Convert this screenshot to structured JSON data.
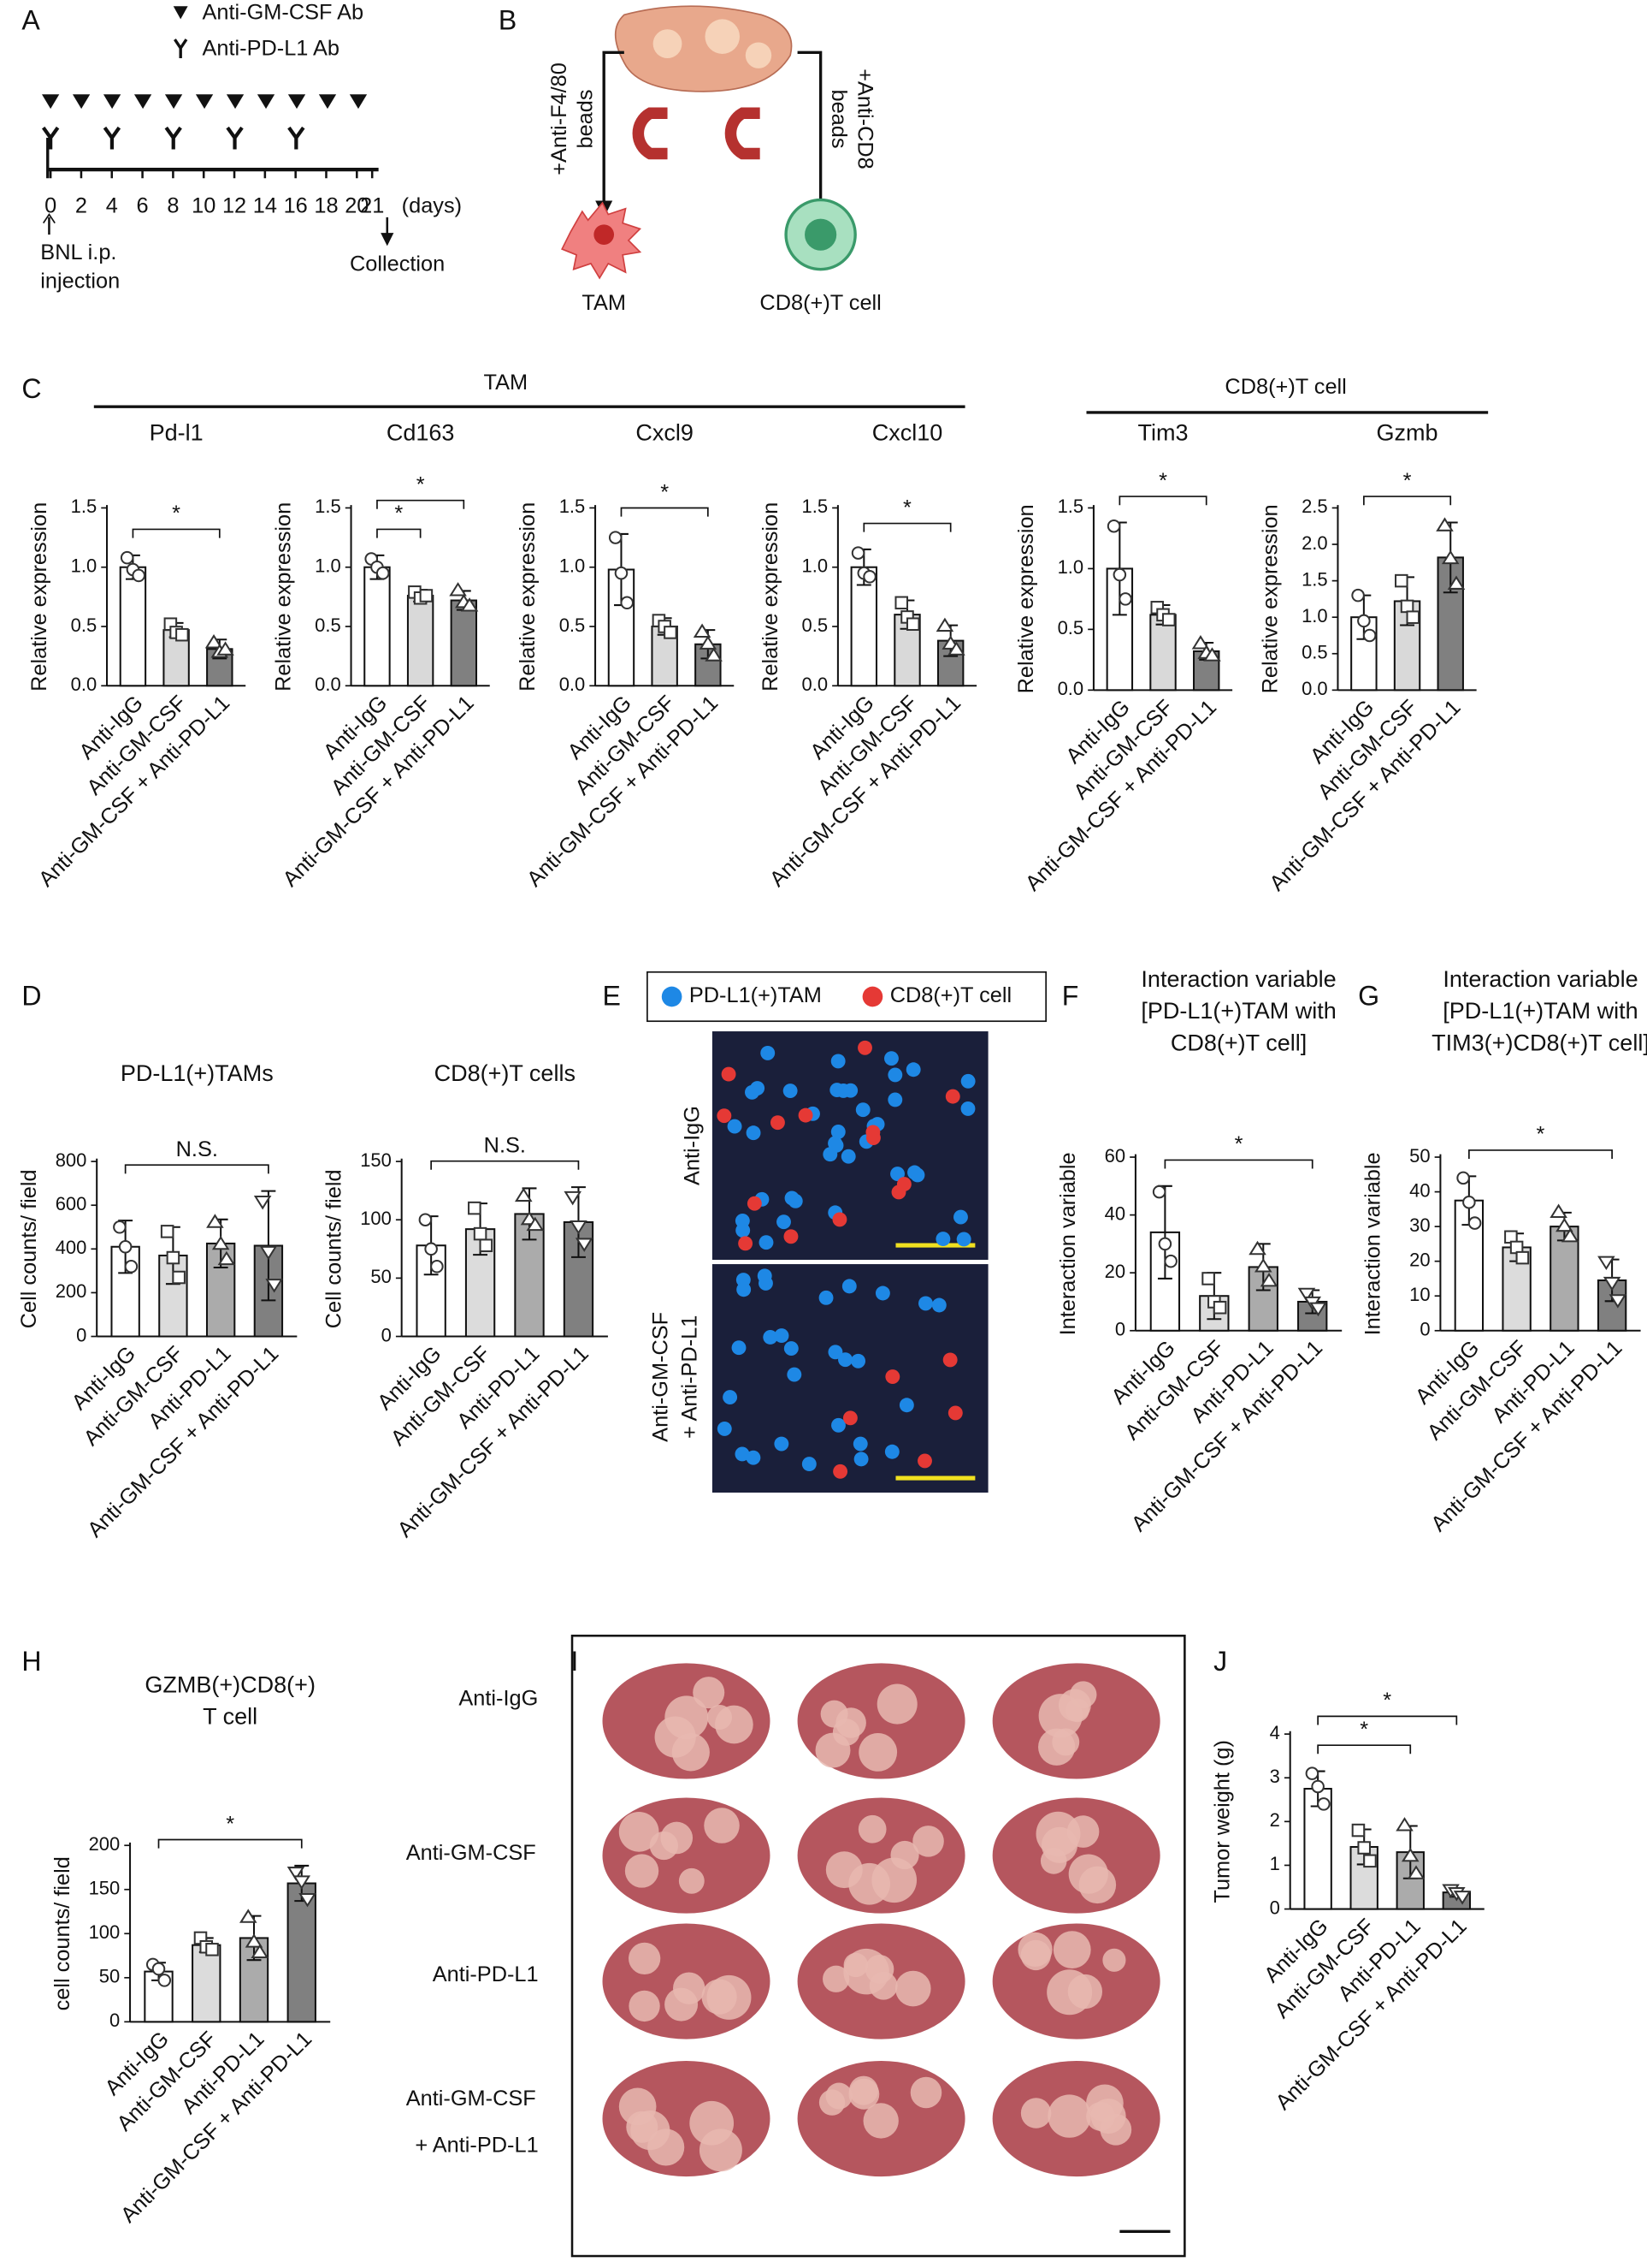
{
  "figure": {
    "panel_labels": [
      "A",
      "B",
      "C",
      "D",
      "E",
      "F",
      "G",
      "H",
      "I",
      "J"
    ],
    "a": {
      "legend": [
        "Anti-GM-CSF Ab",
        "Anti-PD-L1 Ab"
      ],
      "ticks": [
        0,
        2,
        4,
        6,
        8,
        10,
        12,
        14,
        16,
        18,
        20,
        21
      ],
      "unit": "(days)",
      "start": [
        "BNL i.p.",
        "injection"
      ],
      "end": "Collection"
    },
    "b": {
      "left": [
        "+Anti-F4/80",
        "beads"
      ],
      "right": [
        "+Anti-CD8",
        "beads"
      ],
      "cells": [
        "TAM",
        "CD8(+)T cell"
      ]
    },
    "c": {
      "groups": [
        "TAM",
        "CD8(+)T cell"
      ]
    },
    "e": {
      "legend": [
        "PD-L1(+)TAM",
        "CD8(+)T cell"
      ],
      "rows": [
        [
          "Anti-IgG"
        ],
        [
          "Anti-GM-CSF",
          "+ Anti-PD-L1"
        ]
      ]
    },
    "i": {
      "rows": [
        [
          "Anti-IgG"
        ],
        [
          "Anti-GM-CSF"
        ],
        [
          "Anti-PD-L1"
        ],
        [
          "Anti-GM-CSF",
          "+ Anti-PD-L1"
        ]
      ]
    }
  },
  "chart_data": [
    {
      "type": "bar",
      "title": "Pd-l1",
      "ylabel": "Relative expression",
      "categories": [
        "Anti-IgG",
        "Anti-GM-CSF",
        "Anti-GM-CSF + Anti-PD-L1"
      ],
      "values": [
        1.0,
        0.47,
        0.31
      ],
      "errors": [
        0.1,
        0.06,
        0.08
      ],
      "points": [
        [
          1.08,
          0.98,
          0.93
        ],
        [
          0.52,
          0.45,
          0.43
        ],
        [
          0.36,
          0.28,
          0.3
        ]
      ],
      "colors": [
        "#ffffff",
        "#d9d9d9",
        "#808080"
      ],
      "ylim": [
        0,
        1.5
      ],
      "yticks": [
        {
          "value": 0,
          "label": "0.0"
        },
        0.5,
        {
          "value": 1,
          "label": "1.0"
        },
        1.5
      ],
      "brackets": [
        {
          "label": "*",
          "from": 0,
          "to": 2
        }
      ]
    },
    {
      "type": "bar",
      "title": "Cd163",
      "ylabel": "Relative expression",
      "categories": [
        "Anti-IgG",
        "Anti-GM-CSF",
        "Anti-GM-CSF + Anti-PD-L1"
      ],
      "values": [
        1.0,
        0.76,
        0.72
      ],
      "errors": [
        0.1,
        0.05,
        0.08
      ],
      "points": [
        [
          1.07,
          1.0,
          0.95
        ],
        [
          0.79,
          0.74,
          0.76
        ],
        [
          0.8,
          0.7,
          0.67
        ]
      ],
      "colors": [
        "#ffffff",
        "#d9d9d9",
        "#808080"
      ],
      "ylim": [
        0,
        1.5
      ],
      "yticks": [
        {
          "value": 0,
          "label": "0.0"
        },
        0.5,
        {
          "value": 1,
          "label": "1.0"
        },
        1.5
      ],
      "brackets": [
        {
          "label": "*",
          "from": 0,
          "to": 1
        },
        {
          "label": "*",
          "from": 0,
          "to": 2
        }
      ]
    },
    {
      "type": "bar",
      "title": "Cxcl9",
      "ylabel": "Relative expression",
      "categories": [
        "Anti-IgG",
        "Anti-GM-CSF",
        "Anti-GM-CSF + Anti-PD-L1"
      ],
      "values": [
        0.98,
        0.5,
        0.35
      ],
      "errors": [
        0.3,
        0.07,
        0.12
      ],
      "points": [
        [
          1.25,
          0.95,
          0.7
        ],
        [
          0.55,
          0.5,
          0.45
        ],
        [
          0.45,
          0.35,
          0.25
        ]
      ],
      "colors": [
        "#ffffff",
        "#d9d9d9",
        "#808080"
      ],
      "ylim": [
        0,
        1.5
      ],
      "yticks": [
        {
          "value": 0,
          "label": "0.0"
        },
        0.5,
        {
          "value": 1,
          "label": "1.0"
        },
        1.5
      ],
      "brackets": [
        {
          "label": "*",
          "from": 0,
          "to": 2
        }
      ]
    },
    {
      "type": "bar",
      "title": "Cxcl10",
      "ylabel": "Relative expression",
      "categories": [
        "Anti-IgG",
        "Anti-GM-CSF",
        "Anti-GM-CSF + Anti-PD-L1"
      ],
      "values": [
        1.0,
        0.6,
        0.38
      ],
      "errors": [
        0.15,
        0.12,
        0.13
      ],
      "points": [
        [
          1.12,
          0.95,
          0.92
        ],
        [
          0.7,
          0.58,
          0.52
        ],
        [
          0.5,
          0.35,
          0.3
        ]
      ],
      "colors": [
        "#ffffff",
        "#d9d9d9",
        "#808080"
      ],
      "ylim": [
        0,
        1.5
      ],
      "yticks": [
        {
          "value": 0,
          "label": "0.0"
        },
        0.5,
        {
          "value": 1,
          "label": "1.0"
        },
        1.5
      ],
      "brackets": [
        {
          "label": "*",
          "from": 0,
          "to": 2
        }
      ]
    },
    {
      "type": "bar",
      "title": "Tim3",
      "ylabel": "Relative expression",
      "categories": [
        "Anti-IgG",
        "Anti-GM-CSF",
        "Anti-GM-CSF + Anti-PD-L1"
      ],
      "values": [
        1.0,
        0.62,
        0.32
      ],
      "errors": [
        0.38,
        0.08,
        0.07
      ],
      "points": [
        [
          1.35,
          0.95,
          0.75
        ],
        [
          0.68,
          0.62,
          0.58
        ],
        [
          0.38,
          0.3,
          0.28
        ]
      ],
      "colors": [
        "#ffffff",
        "#d9d9d9",
        "#808080"
      ],
      "ylim": [
        0,
        1.5
      ],
      "yticks": [
        {
          "value": 0,
          "label": "0.0"
        },
        0.5,
        {
          "value": 1,
          "label": "1.0"
        },
        1.5
      ],
      "brackets": [
        {
          "label": "*",
          "from": 0,
          "to": 2
        }
      ]
    },
    {
      "type": "bar",
      "title": "Gzmb",
      "ylabel": "Relative expression",
      "categories": [
        "Anti-IgG",
        "Anti-GM-CSF",
        "Anti-GM-CSF + Anti-PD-L1"
      ],
      "values": [
        1.0,
        1.22,
        1.82
      ],
      "errors": [
        0.3,
        0.33,
        0.48
      ],
      "points": [
        [
          1.3,
          0.95,
          0.75
        ],
        [
          1.5,
          1.15,
          1.0
        ],
        [
          2.25,
          1.8,
          1.45
        ]
      ],
      "colors": [
        "#ffffff",
        "#d9d9d9",
        "#808080"
      ],
      "ylim": [
        0,
        2.5
      ],
      "yticks": [
        {
          "value": 0,
          "label": "0.0"
        },
        0.5,
        {
          "value": 1,
          "label": "1.0"
        },
        1.5,
        {
          "value": 2,
          "label": "2.0"
        },
        2.5
      ],
      "brackets": [
        {
          "label": "*",
          "from": 0,
          "to": 2
        }
      ]
    },
    {
      "type": "bar",
      "title": "PD-L1(+)TAMs",
      "ylabel": "Cell counts/ field",
      "categories": [
        "Anti-IgG",
        "Anti-GM-CSF",
        "Anti-PD-L1",
        "Anti-GM-CSF + Anti-PD-L1"
      ],
      "values": [
        410,
        370,
        425,
        415
      ],
      "errors": [
        120,
        130,
        110,
        250
      ],
      "points": [
        [
          500,
          410,
          320
        ],
        [
          480,
          360,
          270
        ],
        [
          520,
          420,
          350
        ],
        [
          620,
          390,
          240
        ]
      ],
      "colors": [
        "#ffffff",
        "#dcdcdc",
        "#ababab",
        "#808080"
      ],
      "ylim": [
        0,
        800
      ],
      "yticks": [
        0,
        200,
        400,
        600,
        800
      ],
      "brackets": [
        {
          "label": "N.S.",
          "from": 0,
          "to": 3
        }
      ]
    },
    {
      "type": "bar",
      "title": "CD8(+)T cells",
      "ylabel": "Cell counts/ field",
      "categories": [
        "Anti-IgG",
        "Anti-GM-CSF",
        "Anti-PD-L1",
        "Anti-GM-CSF + Anti-PD-L1"
      ],
      "values": [
        78,
        92,
        105,
        98
      ],
      "errors": [
        25,
        22,
        22,
        30
      ],
      "points": [
        [
          100,
          75,
          60
        ],
        [
          110,
          88,
          78
        ],
        [
          120,
          100,
          95
        ],
        [
          120,
          95,
          80
        ]
      ],
      "colors": [
        "#ffffff",
        "#dcdcdc",
        "#ababab",
        "#808080"
      ],
      "ylim": [
        0,
        150
      ],
      "yticks": [
        0,
        50,
        100,
        150
      ],
      "brackets": [
        {
          "label": "N.S.",
          "from": 0,
          "to": 3
        }
      ]
    },
    {
      "type": "bar",
      "title": [
        "Interaction variable",
        "[PD-L1(+)TAM with",
        "CD8(+)T cell]"
      ],
      "ylabel": "Interaction variable",
      "categories": [
        "Anti-IgG",
        "Anti-GM-CSF",
        "Anti-PD-L1",
        "Anti-GM-CSF + Anti-PD-L1"
      ],
      "values": [
        34,
        12,
        22,
        10
      ],
      "errors": [
        16,
        8,
        8,
        4
      ],
      "points": [
        [
          48,
          30,
          24
        ],
        [
          18,
          10,
          8
        ],
        [
          28,
          22,
          17
        ],
        [
          13,
          10,
          8
        ]
      ],
      "colors": [
        "#ffffff",
        "#dcdcdc",
        "#ababab",
        "#808080"
      ],
      "ylim": [
        0,
        60
      ],
      "yticks": [
        0,
        20,
        40,
        60
      ],
      "brackets": [
        {
          "label": "*",
          "from": 0,
          "to": 3
        }
      ]
    },
    {
      "type": "bar",
      "title": [
        "Interaction variable",
        "[PD-L1(+)TAM with",
        "TIM3(+)CD8(+)T cell]"
      ],
      "ylabel": "Interaction variable",
      "categories": [
        "Anti-IgG",
        "Anti-GM-CSF",
        "Anti-PD-L1",
        "Anti-GM-CSF + Anti-PD-L1"
      ],
      "values": [
        37.5,
        24,
        30,
        14.5
      ],
      "errors": [
        7,
        4,
        4,
        6
      ],
      "points": [
        [
          44,
          37,
          31
        ],
        [
          27,
          24,
          21
        ],
        [
          34,
          30,
          27
        ],
        [
          20,
          14,
          9
        ]
      ],
      "colors": [
        "#ffffff",
        "#dcdcdc",
        "#ababab",
        "#808080"
      ],
      "ylim": [
        0,
        50
      ],
      "yticks": [
        0,
        10,
        20,
        30,
        40,
        50
      ],
      "brackets": [
        {
          "label": "*",
          "from": 0,
          "to": 3
        }
      ]
    },
    {
      "type": "bar",
      "title": [
        "GZMB(+)CD8(+)",
        "T cell"
      ],
      "ylabel": "cell counts/ field",
      "categories": [
        "Anti-IgG",
        "Anti-GM-CSF",
        "Anti-PD-L1",
        "Anti-GM-CSF + Anti-PD-L1"
      ],
      "values": [
        57,
        87,
        95,
        157
      ],
      "errors": [
        10,
        8,
        25,
        20
      ],
      "points": [
        [
          65,
          60,
          47
        ],
        [
          95,
          85,
          82
        ],
        [
          118,
          90,
          78
        ],
        [
          170,
          160,
          140
        ]
      ],
      "colors": [
        "#ffffff",
        "#dcdcdc",
        "#ababab",
        "#808080"
      ],
      "ylim": [
        0,
        200
      ],
      "yticks": [
        0,
        50,
        100,
        150,
        200
      ],
      "brackets": [
        {
          "label": "*",
          "from": 0,
          "to": 3
        }
      ]
    },
    {
      "type": "bar",
      "ylabel": "Tumor weight (g)",
      "categories": [
        "Anti-IgG",
        "Anti-GM-CSF",
        "Anti-PD-L1",
        "Anti-GM-CSF + Anti-PD-L1"
      ],
      "values": [
        2.75,
        1.42,
        1.3,
        0.38
      ],
      "errors": [
        0.4,
        0.4,
        0.6,
        0.1
      ],
      "points": [
        [
          3.1,
          2.8,
          2.4
        ],
        [
          1.8,
          1.4,
          1.1
        ],
        [
          1.9,
          1.2,
          0.8
        ],
        [
          0.45,
          0.38,
          0.3
        ]
      ],
      "colors": [
        "#ffffff",
        "#dcdcdc",
        "#ababab",
        "#808080"
      ],
      "ylim": [
        0,
        4
      ],
      "yticks": [
        0,
        1,
        2,
        3,
        4
      ],
      "brackets": [
        {
          "label": "*",
          "from": 0,
          "to": 2
        },
        {
          "label": "*",
          "from": 0,
          "to": 3
        }
      ]
    }
  ]
}
